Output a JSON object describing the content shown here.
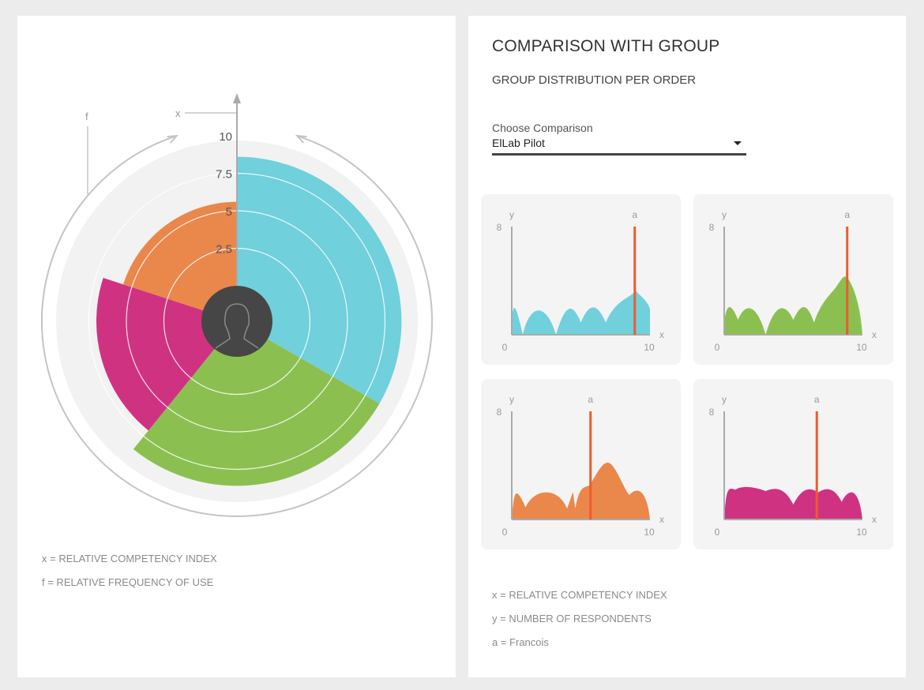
{
  "left_panel": {
    "legend": [
      "x = RELATIVE COMPETENCY INDEX",
      "f = RELATIVE FREQUENCY OF USE"
    ]
  },
  "right_panel": {
    "title": "COMPARISON WITH GROUP",
    "subtitle": "GROUP DISTRIBUTION PER ORDER",
    "comparison": {
      "label": "Choose Comparison",
      "value": "ElLab Pilot"
    },
    "legend": [
      "x = RELATIVE COMPETENCY INDEX",
      "y = NUMBER OF RESPONDENTS",
      "a = Francois"
    ]
  },
  "chart_data": [
    {
      "type": "polar-bar",
      "axis_label_radial": "x",
      "axis_label_angular": "f",
      "rlim": [
        0,
        10
      ],
      "r_ticks": [
        "2.5",
        "5",
        "7.5",
        "10"
      ],
      "center_icon": "user-silhouette-icon",
      "segments": [
        {
          "color": "#70d0dc",
          "start_deg": 0,
          "end_deg": 120,
          "value": 8.6
        },
        {
          "color": "#8bc051",
          "start_deg": 120,
          "end_deg": 219,
          "value": 8.6
        },
        {
          "color": "#d03282",
          "start_deg": 219,
          "end_deg": 288,
          "value": 7.0
        },
        {
          "color": "#ea874b",
          "start_deg": 288,
          "end_deg": 360,
          "value": 5.6
        }
      ]
    },
    {
      "type": "area",
      "xlabel": "x",
      "ylabel": "y",
      "xlim": [
        0,
        10
      ],
      "ylim": [
        0,
        8
      ],
      "x_ticks": [
        "0",
        "10"
      ],
      "y_ticks": [
        "8"
      ],
      "marker_label": "a",
      "marker_x": 8.9,
      "color": "#70d0dc",
      "x": [
        0,
        0.8,
        3.2,
        5,
        6.8,
        8.7,
        9.2,
        10
      ],
      "y": [
        1.2,
        0,
        0,
        0.9,
        0.9,
        3.0,
        3.0,
        1.9
      ]
    },
    {
      "type": "area",
      "xlabel": "x",
      "ylabel": "y",
      "xlim": [
        0,
        10
      ],
      "ylim": [
        0,
        8
      ],
      "x_ticks": [
        "0",
        "10"
      ],
      "y_ticks": [
        "8"
      ],
      "marker_label": "a",
      "marker_x": 8.9,
      "color": "#8bc051",
      "x": [
        0,
        1,
        3,
        5,
        6.5,
        8,
        9,
        10
      ],
      "y": [
        0.9,
        1.1,
        0,
        1.1,
        0.9,
        3.4,
        4.1,
        0
      ]
    },
    {
      "type": "area",
      "xlabel": "x",
      "ylabel": "y",
      "xlim": [
        0,
        10
      ],
      "ylim": [
        0,
        8
      ],
      "x_ticks": [
        "0",
        "10"
      ],
      "y_ticks": [
        "8"
      ],
      "marker_label": "a",
      "marker_x": 5.7,
      "color": "#ea874b",
      "x": [
        0,
        1,
        4,
        4.6,
        5.6,
        7,
        8.5,
        10
      ],
      "y": [
        0,
        0.9,
        0.8,
        0.8,
        2.5,
        4.2,
        1.8,
        0
      ]
    },
    {
      "type": "area",
      "xlabel": "x",
      "ylabel": "y",
      "xlim": [
        0,
        10
      ],
      "ylim": [
        0,
        8
      ],
      "x_ticks": [
        "0",
        "10"
      ],
      "y_ticks": [
        "8"
      ],
      "marker_label": "a",
      "marker_x": 6.7,
      "color": "#d03282",
      "x": [
        0,
        0.8,
        3,
        5,
        6.8,
        8.5,
        10
      ],
      "y": [
        0,
        2.2,
        2.1,
        1.1,
        2.0,
        1.3,
        0
      ]
    }
  ]
}
